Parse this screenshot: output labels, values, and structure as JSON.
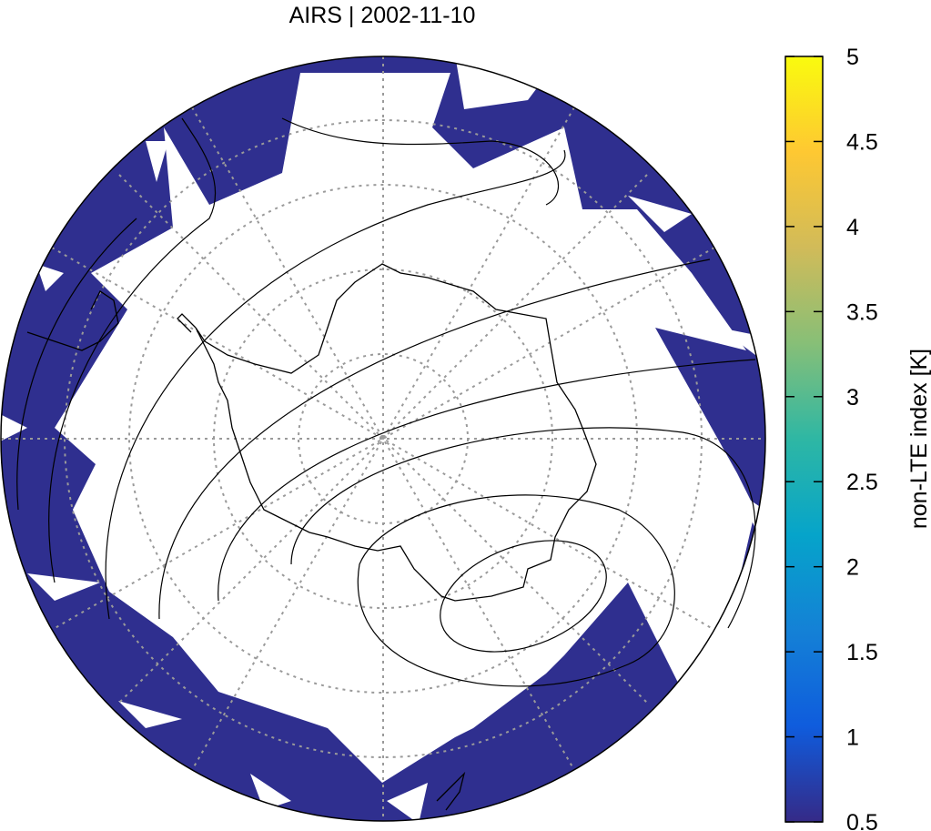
{
  "title": "AIRS | 2002-11-10",
  "colorbar": {
    "label": "non-LTE index [K]",
    "min": 0.5,
    "max": 5,
    "ticks": [
      "5",
      "4.5",
      "4",
      "3.5",
      "3",
      "2.5",
      "2",
      "1.5",
      "1",
      "0.5"
    ],
    "tick_values": [
      5,
      4.5,
      4,
      3.5,
      3,
      2.5,
      2,
      1.5,
      1,
      0.5
    ],
    "colors": [
      "#352a87",
      "#0f5cdd",
      "#1481d6",
      "#06a4ca",
      "#2eb7a4",
      "#87bf77",
      "#d1bb59",
      "#fec832",
      "#f9fb0e"
    ]
  },
  "map": {
    "projection": "south polar stereographic",
    "data_color": "#2f2f8f",
    "grid": "dotted"
  }
}
